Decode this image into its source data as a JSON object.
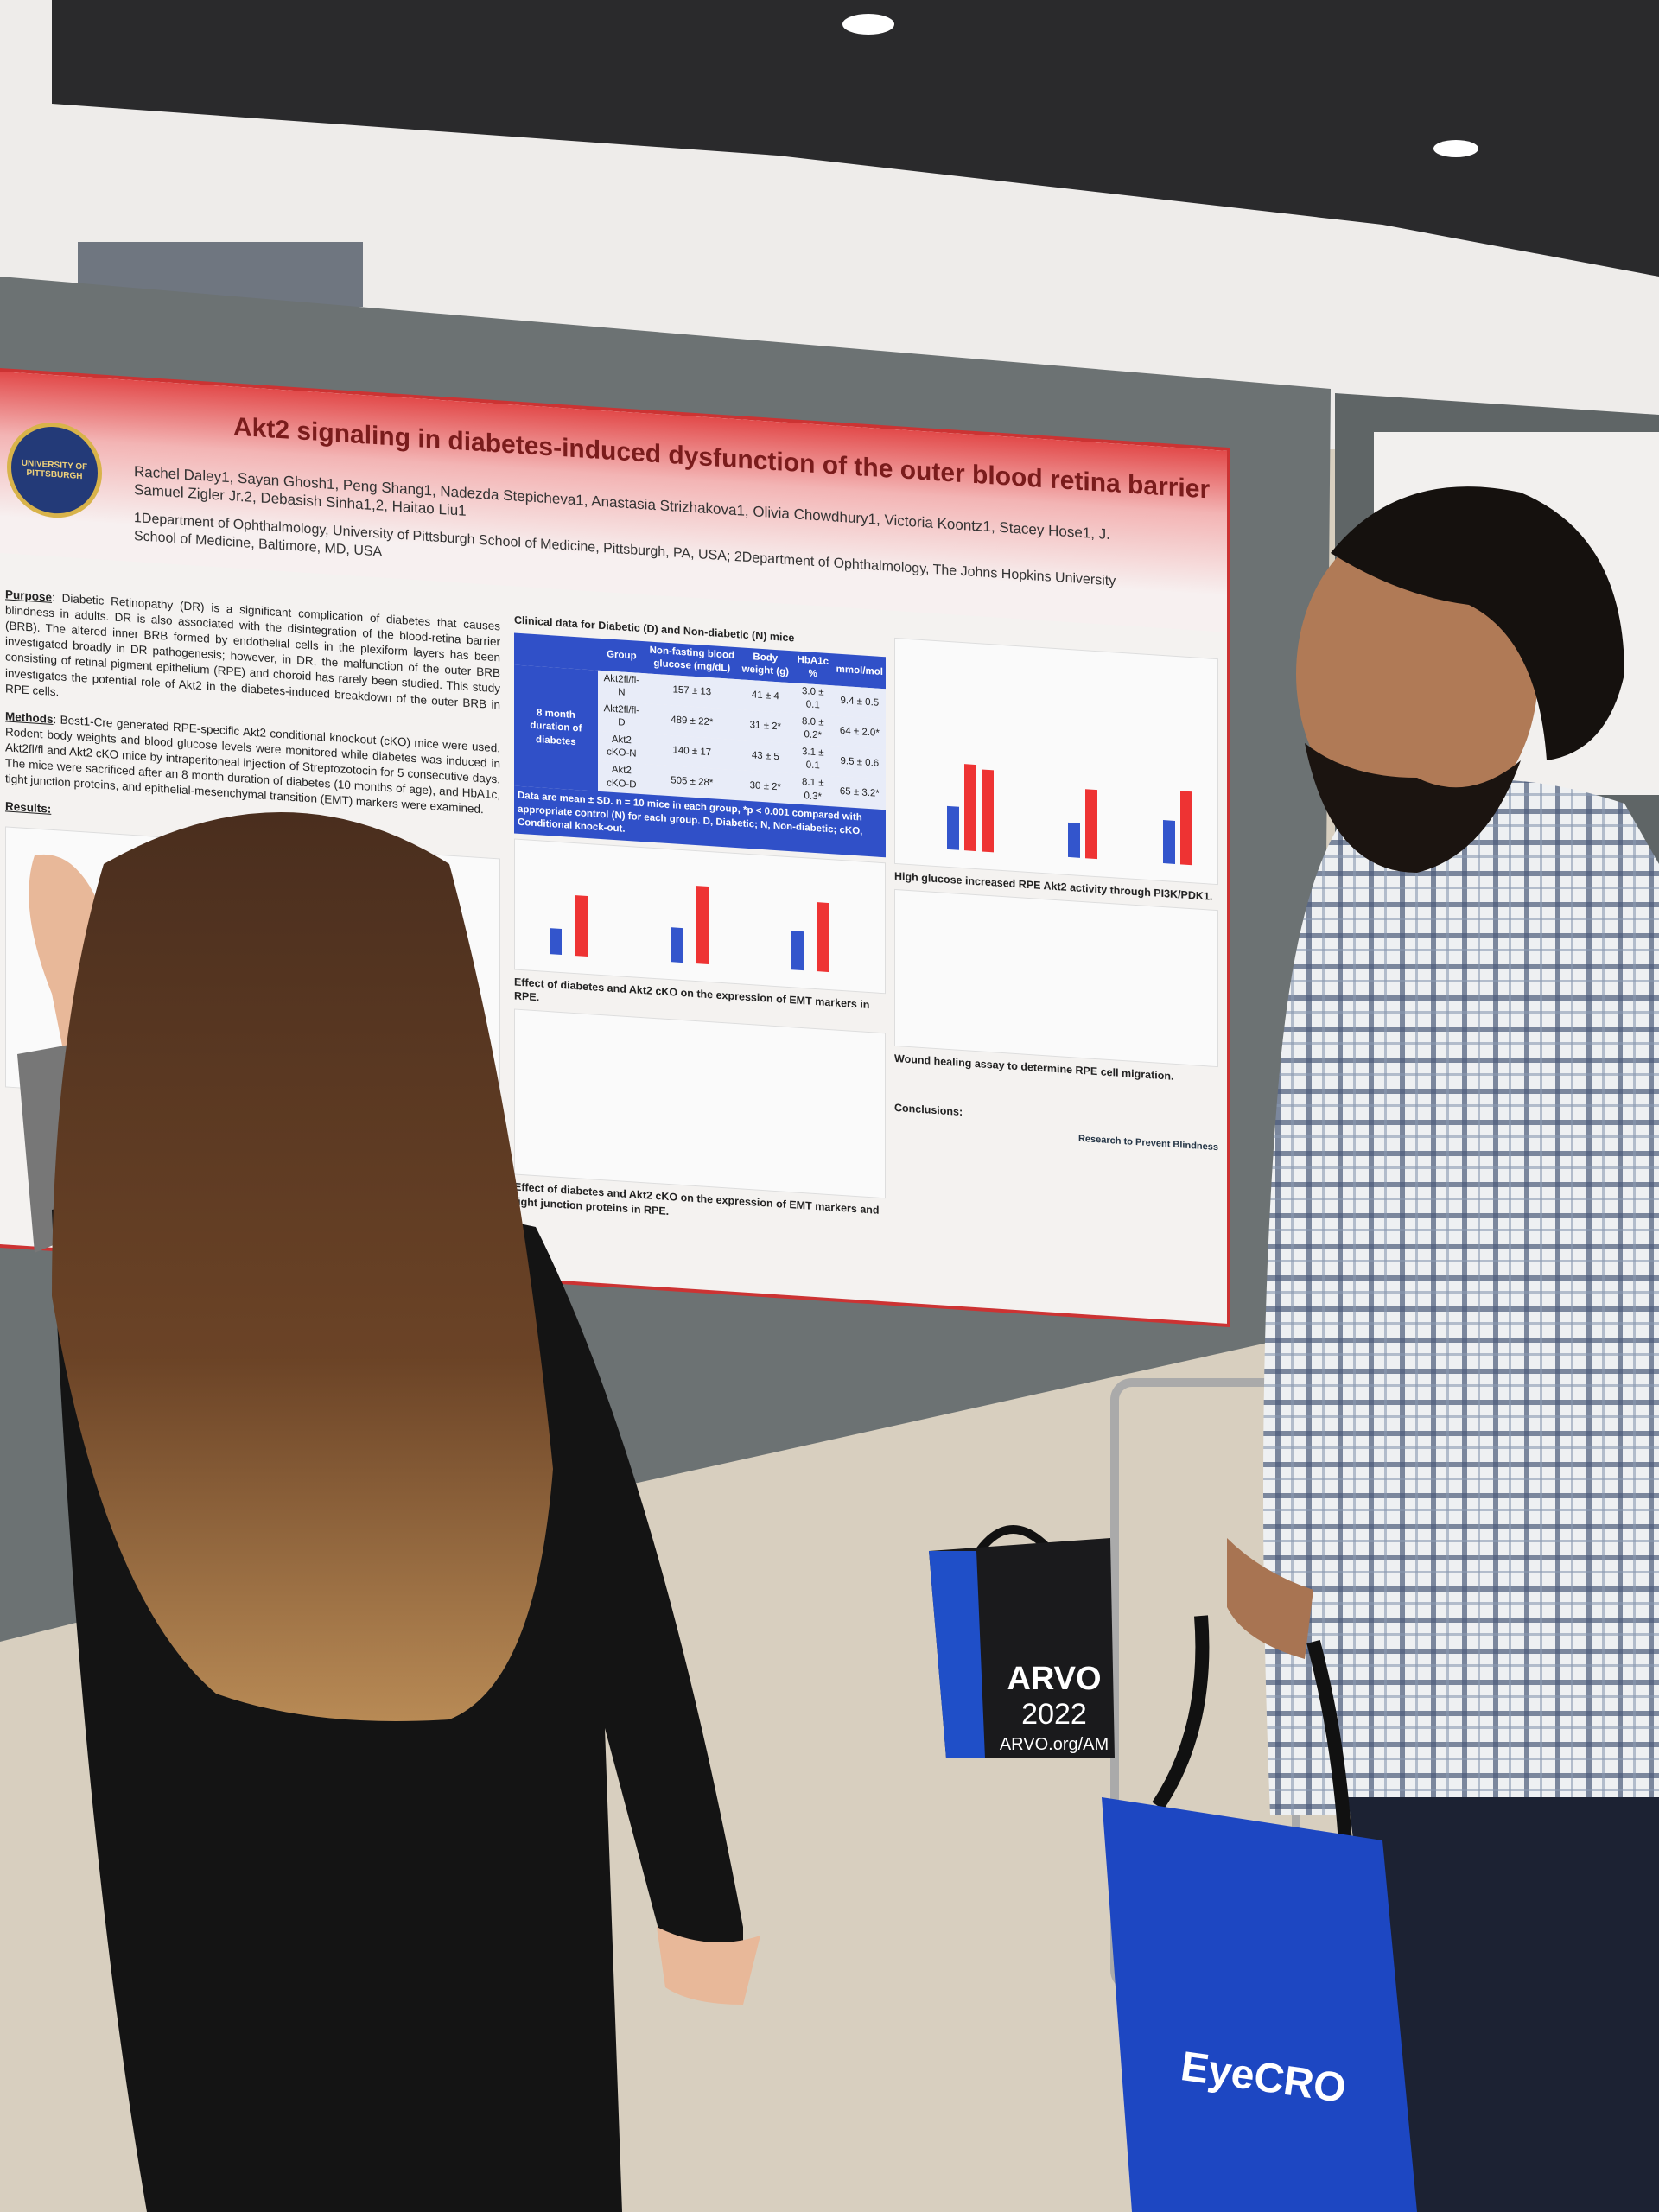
{
  "poster": {
    "logo_text": "UNIVERSITY OF PITTSBURGH",
    "title": "Akt2 signaling in diabetes-induced dysfunction of the outer blood retina barrier",
    "authors": "Rachel Daley1, Sayan Ghosh1, Peng Shang1, Nadezda Stepicheva1, Anastasia Strizhakova1, Olivia Chowdhury1, Victoria Koontz1, Stacey Hose1, J. Samuel Zigler Jr.2, Debasish Sinha1,2, Haitao Liu1",
    "affiliations": "1Department of Ophthalmology, University of Pittsburgh School of Medicine, Pittsburgh, PA, USA; 2Department of Ophthalmology, The Johns Hopkins University School of Medicine, Baltimore, MD, USA",
    "purpose_heading": "Purpose",
    "purpose_text": ": Diabetic Retinopathy (DR) is a significant complication of diabetes that causes blindness in adults. DR is also associated with the disintegration of the blood-retina barrier (BRB). The altered inner BRB formed by endothelial cells in the plexiform layers has been investigated broadly in DR pathogenesis; however, in DR, the malfunction of the outer BRB consisting of retinal pigment epithelium (RPE) and choroid has rarely been studied. This study investigates the potential role of Akt2 in the diabetes-induced breakdown of the outer BRB in RPE cells.",
    "methods_heading": "Methods",
    "methods_text": ": Best1-Cre generated RPE-specific Akt2 conditional knockout (cKO) mice were used. Rodent body weights and blood glucose levels were monitored while diabetes was induced in Akt2fl/fl and Akt2 cKO mice by intraperitoneal injection of Streptozotocin for 5 consecutive days. The mice were sacrificed after an 8 month duration of diabetes (10 months of age), and HbA1c, tight junction proteins, and epithelial-mesenchymal transition (EMT) markers were examined.",
    "results_heading": "Results:",
    "table": {
      "title": "Clinical data for Diabetic (D) and Non-diabetic (N) mice",
      "header": [
        "Group",
        "Non-fasting blood glucose (mg/dL)",
        "Body weight (g)",
        "HbA1c %",
        "mmol/mol"
      ],
      "row_label": "8 month duration of diabetes",
      "rows": [
        [
          "Akt2fl/fl-N",
          "157 ± 13",
          "41 ± 4",
          "3.0 ± 0.1",
          "9.4 ± 0.5"
        ],
        [
          "Akt2fl/fl-D",
          "489 ± 22*",
          "31 ± 2*",
          "8.0 ± 0.2*",
          "64 ± 2.0*"
        ],
        [
          "Akt2 cKO-N",
          "140 ± 17",
          "43 ± 5",
          "3.1 ± 0.1",
          "9.5 ± 0.6"
        ],
        [
          "Akt2 cKO-D",
          "505 ± 28*",
          "30 ± 2*",
          "8.1 ± 0.3*",
          "65 ± 3.2*"
        ]
      ],
      "note": "Data are mean ± SD. n = 10 mice in each group, *p < 0.001 compared with appropriate control (N) for each group. D, Diabetic; N, Non-diabetic; cKO, Conditional knock-out."
    },
    "caption_emt": "Effect of diabetes and Akt2 cKO on the expression of EMT markers in RPE.",
    "caption_tj": "Effect of diabetes and Akt2 cKO on the expression of EMT markers and tight junction proteins in RPE.",
    "caption_glucose": "High glucose increased RPE Akt2 activity through PI3K/PDK1.",
    "caption_wound": "Wound healing assay to determine RPE cell migration.",
    "conclusions_heading": "Conclusions:",
    "sponsor": "Research to Prevent Blindness"
  },
  "arvo_bag": {
    "brand": "ARVO",
    "year": "2022",
    "url": "ARVO.org/AM"
  },
  "blue_bag": {
    "brand": "EyeCRO"
  }
}
